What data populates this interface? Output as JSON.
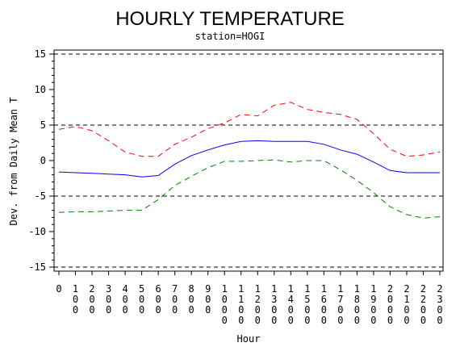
{
  "chart_data": {
    "type": "line",
    "title": "HOURLY TEMPERATURE",
    "subtitle": "station=HOGI",
    "xlabel": "Hour",
    "ylabel": "Dev. from Daily Mean T",
    "ylim": [
      -15,
      15
    ],
    "yticks": [
      -15,
      -10,
      -5,
      0,
      5,
      10,
      15
    ],
    "reference_lines": [
      -15,
      -5,
      5,
      15
    ],
    "grid": false,
    "categories": [
      "0",
      "100",
      "200",
      "300",
      "400",
      "500",
      "600",
      "700",
      "800",
      "900",
      "1000",
      "1100",
      "1200",
      "1300",
      "1400",
      "1500",
      "1600",
      "1700",
      "1800",
      "1900",
      "2000",
      "2100",
      "2200",
      "2300"
    ],
    "series": [
      {
        "color": "#ff0000",
        "dash": "dashed",
        "values": [
          4.4,
          4.8,
          4.2,
          2.8,
          1.2,
          0.6,
          0.6,
          2.3,
          3.3,
          4.5,
          5.3,
          6.5,
          6.3,
          7.8,
          8.2,
          7.2,
          6.8,
          6.5,
          5.8,
          3.8,
          1.6,
          0.6,
          0.8,
          1.2
        ]
      },
      {
        "color": "#0000ff",
        "dash": "solid",
        "values": [
          -1.6,
          -1.7,
          -1.8,
          -1.9,
          -2.0,
          -2.3,
          -2.1,
          -0.5,
          0.7,
          1.5,
          2.2,
          2.7,
          2.8,
          2.7,
          2.7,
          2.7,
          2.3,
          1.5,
          0.9,
          -0.2,
          -1.4,
          -1.7,
          -1.7,
          -1.7
        ]
      },
      {
        "color": "#008000",
        "dash": "dashed",
        "values": [
          -7.3,
          -7.2,
          -7.2,
          -7.1,
          -7.0,
          -7.0,
          -5.5,
          -3.5,
          -2.2,
          -1.0,
          -0.1,
          -0.1,
          0.0,
          0.1,
          -0.2,
          0.0,
          0.0,
          -1.3,
          -2.8,
          -4.5,
          -6.5,
          -7.6,
          -8.1,
          -7.9
        ]
      }
    ]
  }
}
